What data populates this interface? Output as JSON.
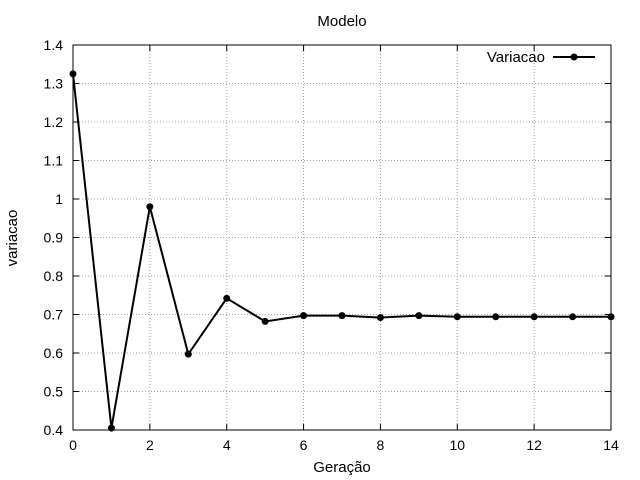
{
  "chart_data": {
    "type": "line",
    "title": "Modelo",
    "xlabel": "Geração",
    "ylabel": "variacao",
    "xlim": [
      0,
      14
    ],
    "ylim": [
      0.4,
      1.4
    ],
    "xticks": [
      0,
      2,
      4,
      6,
      8,
      10,
      12,
      14
    ],
    "yticks": [
      0.4,
      0.5,
      0.6,
      0.7,
      0.8,
      0.9,
      1.0,
      1.1,
      1.2,
      1.3,
      1.4
    ],
    "ytick_labels": [
      "0.4",
      "0.5",
      "0.6",
      "0.7",
      "0.8",
      "0.9",
      "1",
      "1.1",
      "1.2",
      "1.3",
      "1.4"
    ],
    "grid": true,
    "legend_position": "top-right",
    "series": [
      {
        "name": "Variacao",
        "x": [
          0,
          1,
          2,
          3,
          4,
          5,
          6,
          7,
          8,
          9,
          10,
          11,
          12,
          13,
          14
        ],
        "y": [
          1.325,
          0.405,
          0.98,
          0.597,
          0.742,
          0.682,
          0.697,
          0.697,
          0.692,
          0.697,
          0.694,
          0.694,
          0.694,
          0.694,
          0.694
        ],
        "color": "#000000"
      }
    ]
  }
}
